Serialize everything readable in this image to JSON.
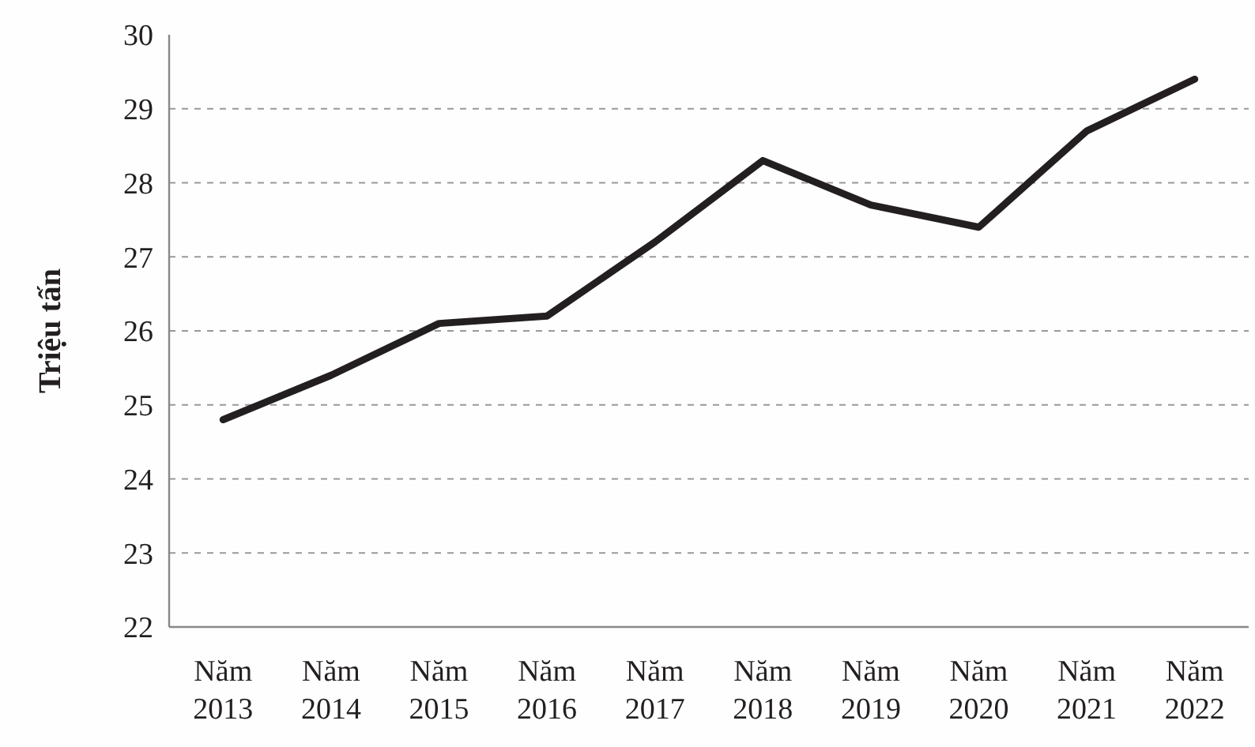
{
  "chart_data": {
    "type": "line",
    "ylabel": "Triệu tấn",
    "categories": [
      "Năm 2013",
      "Năm 2014",
      "Năm 2015",
      "Năm 2016",
      "Năm 2017",
      "Năm 2018",
      "Năm 2019",
      "Năm 2020",
      "Năm 2021",
      "Năm 2022"
    ],
    "series": [
      {
        "color": "#231f20",
        "values": [
          24.8,
          25.4,
          26.1,
          26.2,
          27.2,
          28.3,
          27.7,
          27.4,
          28.7,
          29.4
        ]
      }
    ],
    "ylim": [
      22,
      30
    ],
    "yticks": [
      22,
      23,
      24,
      25,
      26,
      27,
      28,
      29,
      30
    ],
    "grid": "y",
    "marker": "none",
    "line_style": "solid"
  }
}
